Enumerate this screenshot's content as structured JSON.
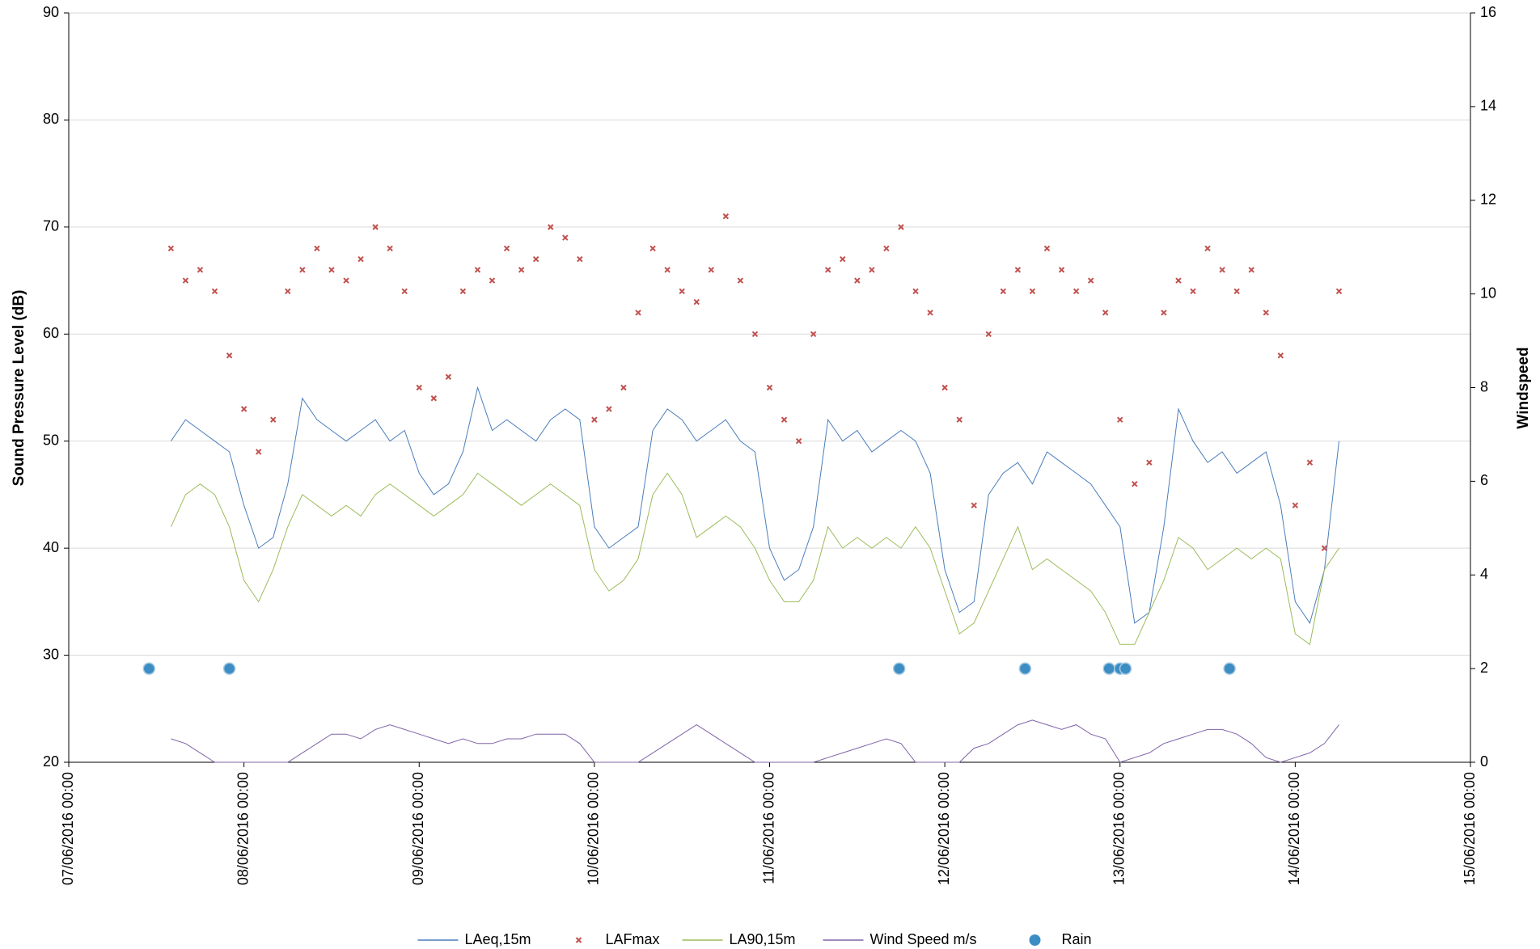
{
  "chart_data": {
    "type": "line",
    "y_label": "Sound Pressure Level (dB)",
    "y2_label": "Windspeed",
    "xlim": [
      "07/06/2016 00:00",
      "15/06/2016 00:00"
    ],
    "xticks": [
      "07/06/2016 00:00",
      "08/06/2016 00:00",
      "09/06/2016 00:00",
      "10/06/2016 00:00",
      "11/06/2016 00:00",
      "12/06/2016 00:00",
      "13/06/2016 00:00",
      "14/06/2016 00:00",
      "15/06/2016 00:00"
    ],
    "ylim": [
      20,
      90
    ],
    "yticks": [
      20,
      30,
      40,
      50,
      60,
      70,
      80,
      90
    ],
    "y2lim": [
      0,
      16
    ],
    "y2ticks": [
      0,
      2,
      4,
      6,
      8,
      10,
      12,
      14,
      16
    ],
    "grid": true,
    "legend": "bottom",
    "x": [
      "07/06/2016 14:00",
      "07/06/2016 16:00",
      "07/06/2016 18:00",
      "07/06/2016 20:00",
      "07/06/2016 22:00",
      "08/06/2016 00:00",
      "08/06/2016 02:00",
      "08/06/2016 04:00",
      "08/06/2016 06:00",
      "08/06/2016 08:00",
      "08/06/2016 10:00",
      "08/06/2016 12:00",
      "08/06/2016 14:00",
      "08/06/2016 16:00",
      "08/06/2016 18:00",
      "08/06/2016 20:00",
      "08/06/2016 22:00",
      "09/06/2016 00:00",
      "09/06/2016 02:00",
      "09/06/2016 04:00",
      "09/06/2016 06:00",
      "09/06/2016 08:00",
      "09/06/2016 10:00",
      "09/06/2016 12:00",
      "09/06/2016 14:00",
      "09/06/2016 16:00",
      "09/06/2016 18:00",
      "09/06/2016 20:00",
      "09/06/2016 22:00",
      "10/06/2016 00:00",
      "10/06/2016 02:00",
      "10/06/2016 04:00",
      "10/06/2016 06:00",
      "10/06/2016 08:00",
      "10/06/2016 10:00",
      "10/06/2016 12:00",
      "10/06/2016 14:00",
      "10/06/2016 16:00",
      "10/06/2016 18:00",
      "10/06/2016 20:00",
      "10/06/2016 22:00",
      "11/06/2016 00:00",
      "11/06/2016 02:00",
      "11/06/2016 04:00",
      "11/06/2016 06:00",
      "11/06/2016 08:00",
      "11/06/2016 10:00",
      "11/06/2016 12:00",
      "11/06/2016 14:00",
      "11/06/2016 16:00",
      "11/06/2016 18:00",
      "11/06/2016 20:00",
      "11/06/2016 22:00",
      "12/06/2016 00:00",
      "12/06/2016 02:00",
      "12/06/2016 04:00",
      "12/06/2016 06:00",
      "12/06/2016 08:00",
      "12/06/2016 10:00",
      "12/06/2016 12:00",
      "12/06/2016 14:00",
      "12/06/2016 16:00",
      "12/06/2016 18:00",
      "12/06/2016 20:00",
      "12/06/2016 22:00",
      "13/06/2016 00:00",
      "13/06/2016 02:00",
      "13/06/2016 04:00",
      "13/06/2016 06:00",
      "13/06/2016 08:00",
      "13/06/2016 10:00",
      "13/06/2016 12:00",
      "13/06/2016 14:00",
      "13/06/2016 16:00",
      "13/06/2016 18:00",
      "13/06/2016 20:00",
      "13/06/2016 22:00",
      "14/06/2016 00:00",
      "14/06/2016 02:00",
      "14/06/2016 04:00",
      "14/06/2016 06:00"
    ],
    "series": [
      {
        "name": "LAeq,15m",
        "color": "#4a7ebb",
        "style": "line",
        "values": [
          50,
          52,
          51,
          50,
          49,
          44,
          40,
          41,
          46,
          54,
          52,
          51,
          50,
          51,
          52,
          50,
          51,
          47,
          45,
          46,
          49,
          55,
          51,
          52,
          51,
          50,
          52,
          53,
          52,
          42,
          40,
          41,
          42,
          51,
          53,
          52,
          50,
          51,
          52,
          50,
          49,
          40,
          37,
          38,
          42,
          52,
          50,
          51,
          49,
          50,
          51,
          50,
          47,
          38,
          34,
          35,
          45,
          47,
          48,
          46,
          49,
          48,
          47,
          46,
          44,
          42,
          33,
          34,
          42,
          53,
          50,
          48,
          49,
          47,
          48,
          49,
          44,
          35,
          33,
          38,
          50
        ]
      },
      {
        "name": "LAFmax",
        "color": "#c0504d",
        "style": "cross",
        "values": [
          68,
          65,
          66,
          64,
          58,
          53,
          49,
          52,
          64,
          66,
          68,
          66,
          65,
          67,
          70,
          68,
          64,
          55,
          54,
          56,
          64,
          66,
          65,
          68,
          66,
          67,
          70,
          69,
          67,
          52,
          53,
          55,
          62,
          68,
          66,
          64,
          63,
          66,
          71,
          65,
          60,
          55,
          52,
          50,
          60,
          66,
          67,
          65,
          66,
          68,
          70,
          64,
          62,
          55,
          52,
          44,
          60,
          64,
          66,
          64,
          68,
          66,
          64,
          65,
          62,
          52,
          46,
          48,
          62,
          65,
          64,
          68,
          66,
          64,
          66,
          62,
          58,
          44,
          48,
          40,
          64
        ]
      },
      {
        "name": "LA90,15m",
        "color": "#9bbb59",
        "style": "line",
        "values": [
          42,
          45,
          46,
          45,
          42,
          37,
          35,
          38,
          42,
          45,
          44,
          43,
          44,
          43,
          45,
          46,
          45,
          44,
          43,
          44,
          45,
          47,
          46,
          45,
          44,
          45,
          46,
          45,
          44,
          38,
          36,
          37,
          39,
          45,
          47,
          45,
          41,
          42,
          43,
          42,
          40,
          37,
          35,
          35,
          37,
          42,
          40,
          41,
          40,
          41,
          40,
          42,
          40,
          36,
          32,
          33,
          36,
          39,
          42,
          38,
          39,
          38,
          37,
          36,
          34,
          31,
          31,
          34,
          37,
          41,
          40,
          38,
          39,
          40,
          39,
          40,
          39,
          32,
          31,
          38,
          40
        ]
      },
      {
        "name": "Wind Speed m/s",
        "color": "#7f63a8",
        "style": "line",
        "axis": "y2",
        "values": [
          0.5,
          0.4,
          0.2,
          0,
          0,
          0,
          0,
          0,
          0,
          0.2,
          0.4,
          0.6,
          0.6,
          0.5,
          0.7,
          0.8,
          0.7,
          0.6,
          0.5,
          0.4,
          0.5,
          0.4,
          0.4,
          0.5,
          0.5,
          0.6,
          0.6,
          0.6,
          0.4,
          0,
          0,
          0,
          0,
          0.2,
          0.4,
          0.6,
          0.8,
          0.6,
          0.4,
          0.2,
          0,
          0,
          0,
          0,
          0,
          0.1,
          0.2,
          0.3,
          0.4,
          0.5,
          0.4,
          0,
          0,
          0,
          0,
          0.3,
          0.4,
          0.6,
          0.8,
          0.9,
          0.8,
          0.7,
          0.8,
          0.6,
          0.5,
          0,
          0.1,
          0.2,
          0.4,
          0.5,
          0.6,
          0.7,
          0.7,
          0.6,
          0.4,
          0.1,
          0,
          0.1,
          0.2,
          0.4,
          0.8
        ]
      },
      {
        "name": "Rain",
        "color": "#3c8dc4",
        "style": "dot",
        "axis": "y2",
        "x": [
          "07/06/2016 11:00",
          "07/06/2016 22:00",
          "11/06/2016 17:45",
          "12/06/2016 11:00",
          "12/06/2016 22:30",
          "13/06/2016 00:00",
          "13/06/2016 00:45",
          "13/06/2016 15:00"
        ],
        "values": [
          2,
          2,
          2,
          2,
          2,
          2,
          2,
          2
        ]
      }
    ]
  }
}
